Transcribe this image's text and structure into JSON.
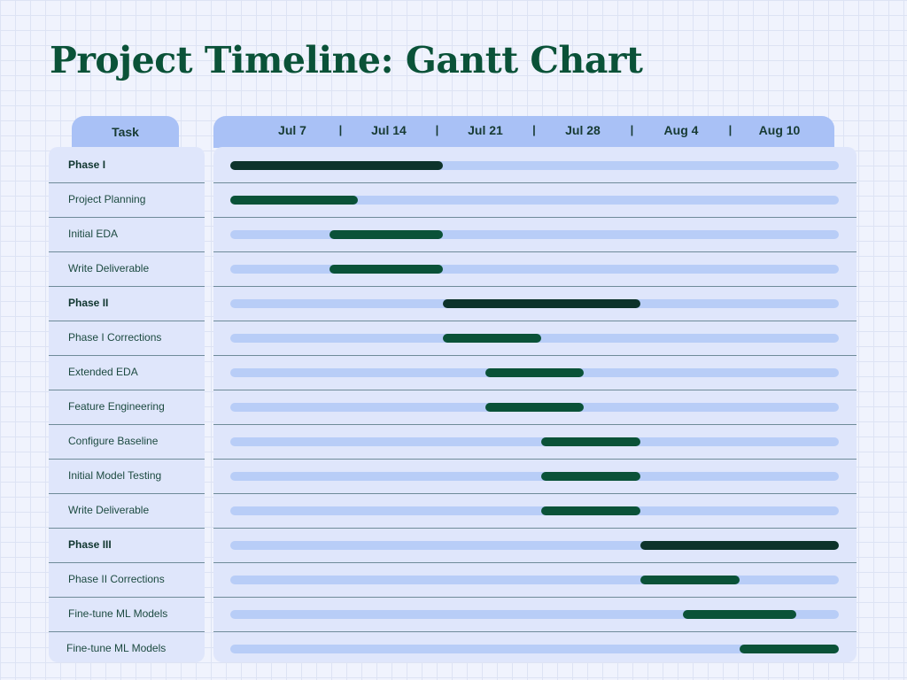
{
  "title": "Project Timeline: Gantt Chart",
  "chart_data": {
    "type": "gantt",
    "task_column_label": "Task",
    "x_ticks": [
      "Jul 7",
      "Jul 14",
      "Jul 21",
      "Jul 28",
      "Aug 4",
      "Aug 10"
    ],
    "x_separator": "|",
    "x_range": [
      "Jul 3",
      "Aug 15"
    ],
    "tasks": [
      {
        "label": "Phase I",
        "is_phase": true,
        "start": "Jul 3",
        "end": "Jul 18"
      },
      {
        "label": "Project Planning",
        "is_phase": false,
        "start": "Jul 3",
        "end": "Jul 12"
      },
      {
        "label": "Initial EDA",
        "is_phase": false,
        "start": "Jul 10",
        "end": "Jul 18"
      },
      {
        "label": "Write Deliverable",
        "is_phase": false,
        "start": "Jul 10",
        "end": "Jul 18"
      },
      {
        "label": "Phase II",
        "is_phase": true,
        "start": "Jul 18",
        "end": "Aug 1"
      },
      {
        "label": "Phase I Corrections",
        "is_phase": false,
        "start": "Jul 18",
        "end": "Jul 25"
      },
      {
        "label": "Extended EDA",
        "is_phase": false,
        "start": "Jul 21",
        "end": "Jul 28"
      },
      {
        "label": "Feature Engineering",
        "is_phase": false,
        "start": "Jul 21",
        "end": "Jul 28"
      },
      {
        "label": "Configure Baseline",
        "is_phase": false,
        "start": "Jul 25",
        "end": "Aug 1"
      },
      {
        "label": "Initial Model Testing",
        "is_phase": false,
        "start": "Jul 25",
        "end": "Aug 1"
      },
      {
        "label": "Write Deliverable",
        "is_phase": false,
        "start": "Jul 25",
        "end": "Aug 1"
      },
      {
        "label": "Phase III",
        "is_phase": true,
        "start": "Aug 1",
        "end": "Aug 15"
      },
      {
        "label": "Phase II Corrections",
        "is_phase": false,
        "start": "Aug 1",
        "end": "Aug 8"
      },
      {
        "label": "Fine-tune ML Models",
        "is_phase": false,
        "start": "Aug 4",
        "end": "Aug 12"
      },
      {
        "label": "Fine-tune ML Models",
        "is_phase": false,
        "start": "Aug 8",
        "end": "Aug 15"
      }
    ]
  },
  "colors": {
    "title": "#0a5238",
    "header_bg": "#a9c1f6",
    "panel_bg": "#dfe6fb",
    "track": "#b8cdf7",
    "task_bar": "#0a5238",
    "phase_bar": "#0d332b"
  }
}
